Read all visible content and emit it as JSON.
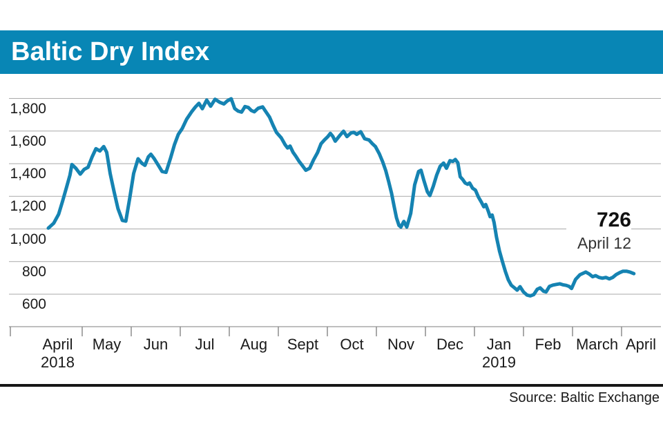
{
  "header": {
    "title": "Baltic Dry Index"
  },
  "annotation": {
    "value": "726",
    "date": "April 12"
  },
  "footer": {
    "source": "Source: Baltic Exchange"
  },
  "colors": {
    "header_bg": "#0886b5",
    "line": "#1583b2",
    "grid": "#a9a9a9",
    "axis": "#a9a9a9",
    "tick": "#8c8c8c",
    "text": "#1a1a1a",
    "rule": "#161616"
  },
  "chart_data": {
    "type": "line",
    "title": "Baltic Dry Index",
    "xlabel": "",
    "ylabel": "",
    "x_unit": "months since 2018-04-01",
    "xlim_months": [
      0,
      12.8
    ],
    "ylim": [
      550,
      1850
    ],
    "grid": "horizontal",
    "legend": "none",
    "x_labels": [
      {
        "label": "April",
        "sublabel": "2018"
      },
      {
        "label": "May"
      },
      {
        "label": "Jun"
      },
      {
        "label": "Jul"
      },
      {
        "label": "Aug"
      },
      {
        "label": "Sept"
      },
      {
        "label": "Oct"
      },
      {
        "label": "Nov"
      },
      {
        "label": "Dec"
      },
      {
        "label": "Jan",
        "sublabel": "2019"
      },
      {
        "label": "Feb"
      },
      {
        "label": "March"
      },
      {
        "label": "April"
      }
    ],
    "y_ticks": [
      {
        "label": "1,800",
        "value": 1800
      },
      {
        "label": "1,600",
        "value": 1600
      },
      {
        "label": "1,400",
        "value": 1400
      },
      {
        "label": "1,200",
        "value": 1200
      },
      {
        "label": "1,000",
        "value": 1000
      },
      {
        "label": "800",
        "value": 800
      },
      {
        "label": "600",
        "value": 600
      }
    ],
    "annotation": {
      "label": "726",
      "sublabel": "April 12",
      "value": 726,
      "x_month": 12.25
    },
    "source": "Baltic Exchange",
    "series": [
      {
        "name": "Baltic Dry Index",
        "points": [
          [
            0.31,
            1005
          ],
          [
            0.42,
            1035
          ],
          [
            0.52,
            1090
          ],
          [
            0.6,
            1170
          ],
          [
            0.68,
            1255
          ],
          [
            0.75,
            1330
          ],
          [
            0.79,
            1395
          ],
          [
            0.87,
            1372
          ],
          [
            0.96,
            1336
          ],
          [
            1.04,
            1365
          ],
          [
            1.12,
            1378
          ],
          [
            1.2,
            1440
          ],
          [
            1.28,
            1492
          ],
          [
            1.36,
            1478
          ],
          [
            1.44,
            1505
          ],
          [
            1.5,
            1470
          ],
          [
            1.57,
            1340
          ],
          [
            1.65,
            1230
          ],
          [
            1.73,
            1125
          ],
          [
            1.82,
            1052
          ],
          [
            1.89,
            1048
          ],
          [
            1.97,
            1190
          ],
          [
            2.05,
            1340
          ],
          [
            2.14,
            1430
          ],
          [
            2.22,
            1402
          ],
          [
            2.28,
            1390
          ],
          [
            2.35,
            1442
          ],
          [
            2.4,
            1458
          ],
          [
            2.47,
            1430
          ],
          [
            2.55,
            1392
          ],
          [
            2.63,
            1352
          ],
          [
            2.71,
            1347
          ],
          [
            2.8,
            1432
          ],
          [
            2.88,
            1515
          ],
          [
            2.96,
            1580
          ],
          [
            3.04,
            1615
          ],
          [
            3.13,
            1672
          ],
          [
            3.23,
            1717
          ],
          [
            3.31,
            1748
          ],
          [
            3.38,
            1770
          ],
          [
            3.45,
            1737
          ],
          [
            3.54,
            1790
          ],
          [
            3.62,
            1752
          ],
          [
            3.71,
            1795
          ],
          [
            3.8,
            1777
          ],
          [
            3.89,
            1766
          ],
          [
            3.96,
            1785
          ],
          [
            4.04,
            1798
          ],
          [
            4.11,
            1738
          ],
          [
            4.18,
            1722
          ],
          [
            4.25,
            1716
          ],
          [
            4.32,
            1750
          ],
          [
            4.39,
            1744
          ],
          [
            4.45,
            1726
          ],
          [
            4.51,
            1718
          ],
          [
            4.59,
            1740
          ],
          [
            4.68,
            1748
          ],
          [
            4.75,
            1716
          ],
          [
            4.82,
            1686
          ],
          [
            4.89,
            1637
          ],
          [
            4.96,
            1592
          ],
          [
            5.06,
            1558
          ],
          [
            5.14,
            1516
          ],
          [
            5.19,
            1496
          ],
          [
            5.24,
            1508
          ],
          [
            5.3,
            1470
          ],
          [
            5.36,
            1444
          ],
          [
            5.42,
            1416
          ],
          [
            5.49,
            1388
          ],
          [
            5.56,
            1360
          ],
          [
            5.64,
            1372
          ],
          [
            5.72,
            1424
          ],
          [
            5.8,
            1468
          ],
          [
            5.87,
            1522
          ],
          [
            5.94,
            1545
          ],
          [
            6.01,
            1566
          ],
          [
            6.06,
            1586
          ],
          [
            6.11,
            1568
          ],
          [
            6.16,
            1538
          ],
          [
            6.25,
            1572
          ],
          [
            6.33,
            1599
          ],
          [
            6.4,
            1566
          ],
          [
            6.48,
            1588
          ],
          [
            6.54,
            1592
          ],
          [
            6.6,
            1580
          ],
          [
            6.68,
            1596
          ],
          [
            6.76,
            1553
          ],
          [
            6.85,
            1545
          ],
          [
            6.92,
            1522
          ],
          [
            6.98,
            1505
          ],
          [
            7.06,
            1460
          ],
          [
            7.13,
            1410
          ],
          [
            7.19,
            1358
          ],
          [
            7.25,
            1290
          ],
          [
            7.31,
            1218
          ],
          [
            7.36,
            1140
          ],
          [
            7.41,
            1068
          ],
          [
            7.46,
            1022
          ],
          [
            7.5,
            1012
          ],
          [
            7.56,
            1046
          ],
          [
            7.62,
            1012
          ],
          [
            7.7,
            1095
          ],
          [
            7.78,
            1270
          ],
          [
            7.86,
            1352
          ],
          [
            7.91,
            1360
          ],
          [
            7.97,
            1295
          ],
          [
            8.04,
            1228
          ],
          [
            8.09,
            1205
          ],
          [
            8.16,
            1262
          ],
          [
            8.23,
            1330
          ],
          [
            8.3,
            1384
          ],
          [
            8.37,
            1404
          ],
          [
            8.43,
            1372
          ],
          [
            8.5,
            1418
          ],
          [
            8.56,
            1414
          ],
          [
            8.61,
            1426
          ],
          [
            8.66,
            1406
          ],
          [
            8.71,
            1320
          ],
          [
            8.76,
            1303
          ],
          [
            8.81,
            1282
          ],
          [
            8.86,
            1274
          ],
          [
            8.9,
            1282
          ],
          [
            8.96,
            1250
          ],
          [
            9.02,
            1238
          ],
          [
            9.08,
            1196
          ],
          [
            9.14,
            1165
          ],
          [
            9.19,
            1136
          ],
          [
            9.23,
            1150
          ],
          [
            9.28,
            1110
          ],
          [
            9.32,
            1075
          ],
          [
            9.36,
            1085
          ],
          [
            9.4,
            1040
          ],
          [
            9.45,
            950
          ],
          [
            9.51,
            865
          ],
          [
            9.57,
            800
          ],
          [
            9.63,
            740
          ],
          [
            9.69,
            688
          ],
          [
            9.75,
            655
          ],
          [
            9.82,
            638
          ],
          [
            9.87,
            625
          ],
          [
            9.93,
            646
          ],
          [
            10.0,
            614
          ],
          [
            10.07,
            595
          ],
          [
            10.14,
            590
          ],
          [
            10.21,
            598
          ],
          [
            10.28,
            630
          ],
          [
            10.34,
            639
          ],
          [
            10.41,
            618
          ],
          [
            10.46,
            614
          ],
          [
            10.53,
            648
          ],
          [
            10.6,
            656
          ],
          [
            10.67,
            660
          ],
          [
            10.74,
            664
          ],
          [
            10.8,
            658
          ],
          [
            10.87,
            654
          ],
          [
            10.93,
            648
          ],
          [
            10.98,
            635
          ],
          [
            11.06,
            690
          ],
          [
            11.15,
            719
          ],
          [
            11.27,
            736
          ],
          [
            11.34,
            724
          ],
          [
            11.41,
            707
          ],
          [
            11.47,
            714
          ],
          [
            11.54,
            703
          ],
          [
            11.61,
            698
          ],
          [
            11.68,
            703
          ],
          [
            11.75,
            694
          ],
          [
            11.82,
            703
          ],
          [
            11.89,
            720
          ],
          [
            11.96,
            732
          ],
          [
            12.03,
            741
          ],
          [
            12.1,
            741
          ],
          [
            12.17,
            736
          ],
          [
            12.25,
            726
          ]
        ]
      }
    ]
  }
}
